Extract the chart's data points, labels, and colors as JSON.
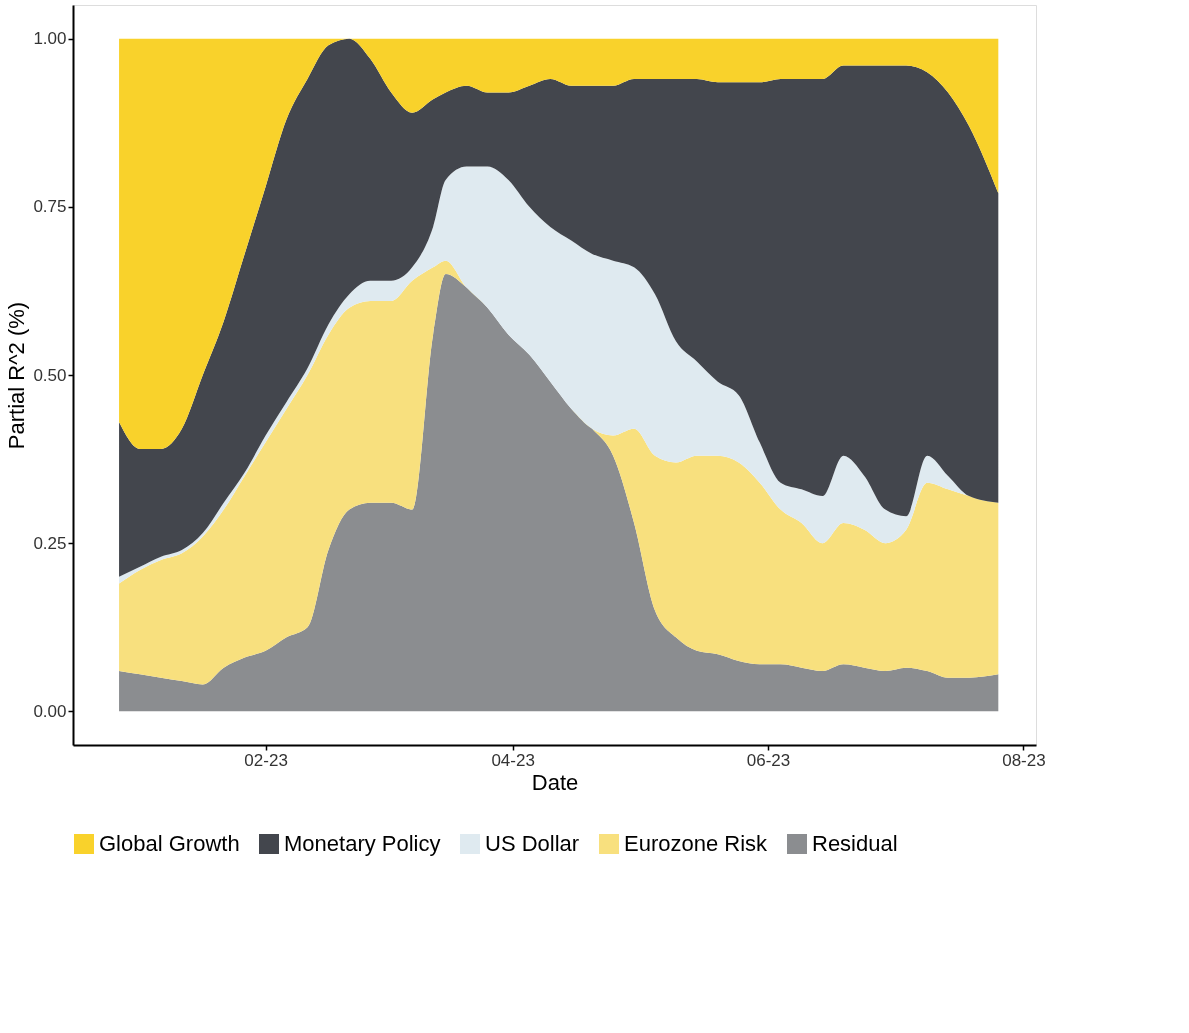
{
  "chart_data": {
    "type": "area",
    "stacked": true,
    "xlabel": "Date",
    "ylabel": "Partial R^2 (%)",
    "x": [
      "2022-12-28",
      "2023-01-02",
      "2023-01-07",
      "2023-01-12",
      "2023-01-17",
      "2023-01-22",
      "2023-01-27",
      "2023-02-01",
      "2023-02-06",
      "2023-02-11",
      "2023-02-16",
      "2023-02-21",
      "2023-02-26",
      "2023-03-03",
      "2023-03-08",
      "2023-03-13",
      "2023-03-16",
      "2023-03-21",
      "2023-03-26",
      "2023-03-31",
      "2023-04-05",
      "2023-04-10",
      "2023-04-15",
      "2023-04-20",
      "2023-04-25",
      "2023-04-30",
      "2023-05-05",
      "2023-05-10",
      "2023-05-15",
      "2023-05-20",
      "2023-05-25",
      "2023-05-30",
      "2023-06-04",
      "2023-06-09",
      "2023-06-14",
      "2023-06-19",
      "2023-06-24",
      "2023-06-29",
      "2023-07-04",
      "2023-07-09",
      "2023-07-14",
      "2023-07-19",
      "2023-07-26"
    ],
    "series": [
      {
        "name": "Residual",
        "color": "#8b8d90",
        "values": [
          0.06,
          0.055,
          0.05,
          0.045,
          0.04,
          0.065,
          0.08,
          0.09,
          0.11,
          0.125,
          0.24,
          0.3,
          0.31,
          0.31,
          0.3,
          0.56,
          0.65,
          0.63,
          0.6,
          0.56,
          0.53,
          0.49,
          0.45,
          0.42,
          0.38,
          0.28,
          0.15,
          0.11,
          0.09,
          0.085,
          0.075,
          0.07,
          0.07,
          0.065,
          0.06,
          0.07,
          0.065,
          0.06,
          0.065,
          0.06,
          0.05,
          0.05,
          0.055
        ]
      },
      {
        "name": "Eurozone Risk",
        "color": "#f8e07e",
        "values": [
          0.13,
          0.155,
          0.175,
          0.19,
          0.22,
          0.235,
          0.27,
          0.31,
          0.34,
          0.375,
          0.32,
          0.3,
          0.3,
          0.3,
          0.34,
          0.1,
          0.02,
          0,
          0,
          0,
          0,
          0,
          0,
          0,
          0.03,
          0.14,
          0.23,
          0.26,
          0.29,
          0.295,
          0.295,
          0.27,
          0.23,
          0.215,
          0.19,
          0.21,
          0.205,
          0.19,
          0.205,
          0.28,
          0.28,
          0.27,
          0.255
        ]
      },
      {
        "name": "US Dollar",
        "color": "#dfeaf0",
        "values": [
          0.01,
          0.005,
          0.005,
          0.005,
          0.005,
          0.01,
          0.005,
          0.01,
          0.01,
          0.01,
          0.015,
          0.02,
          0.03,
          0.03,
          0.02,
          0.06,
          0.12,
          0.18,
          0.21,
          0.23,
          0.22,
          0.23,
          0.25,
          0.26,
          0.26,
          0.24,
          0.24,
          0.18,
          0.14,
          0.11,
          0.1,
          0.06,
          0.04,
          0.05,
          0.07,
          0.1,
          0.08,
          0.05,
          0.02,
          0.04,
          0.02,
          0,
          0
        ]
      },
      {
        "name": "Monetary Policy",
        "color": "#43464d",
        "values": [
          0.23,
          0.175,
          0.16,
          0.18,
          0.235,
          0.27,
          0.325,
          0.37,
          0.42,
          0.43,
          0.415,
          0.38,
          0.33,
          0.28,
          0.23,
          0.19,
          0.13,
          0.12,
          0.11,
          0.13,
          0.18,
          0.22,
          0.23,
          0.25,
          0.26,
          0.28,
          0.32,
          0.39,
          0.42,
          0.445,
          0.465,
          0.535,
          0.6,
          0.61,
          0.62,
          0.58,
          0.61,
          0.66,
          0.67,
          0.57,
          0.57,
          0.55,
          0.46
        ]
      },
      {
        "name": "Global Growth",
        "color": "#f9d22b",
        "values": [
          0.57,
          0.61,
          0.61,
          0.58,
          0.5,
          0.42,
          0.32,
          0.22,
          0.12,
          0.06,
          0.01,
          0,
          0.03,
          0.08,
          0.11,
          0.09,
          0.08,
          0.07,
          0.08,
          0.08,
          0.07,
          0.06,
          0.07,
          0.07,
          0.07,
          0.06,
          0.06,
          0.06,
          0.06,
          0.065,
          0.065,
          0.065,
          0.06,
          0.06,
          0.06,
          0.04,
          0.04,
          0.04,
          0.04,
          0.05,
          0.08,
          0.13,
          0.23
        ]
      }
    ],
    "xlim": [
      "2022-12-17",
      "2023-08-04"
    ],
    "xticks": [
      {
        "value": "2023-02-01",
        "label": "02-23"
      },
      {
        "value": "2023-04-01",
        "label": "04-23"
      },
      {
        "value": "2023-06-01",
        "label": "06-23"
      },
      {
        "value": "2023-08-01",
        "label": "08-23"
      }
    ],
    "ylim": [
      -0.05,
      1.05
    ],
    "yticks": [
      {
        "value": 0,
        "label": "0.00"
      },
      {
        "value": 0.25,
        "label": "0.25"
      },
      {
        "value": 0.5,
        "label": "0.50"
      },
      {
        "value": 0.75,
        "label": "0.75"
      },
      {
        "value": 1,
        "label": "1.00"
      }
    ],
    "grid": false,
    "legend": "bottom"
  }
}
